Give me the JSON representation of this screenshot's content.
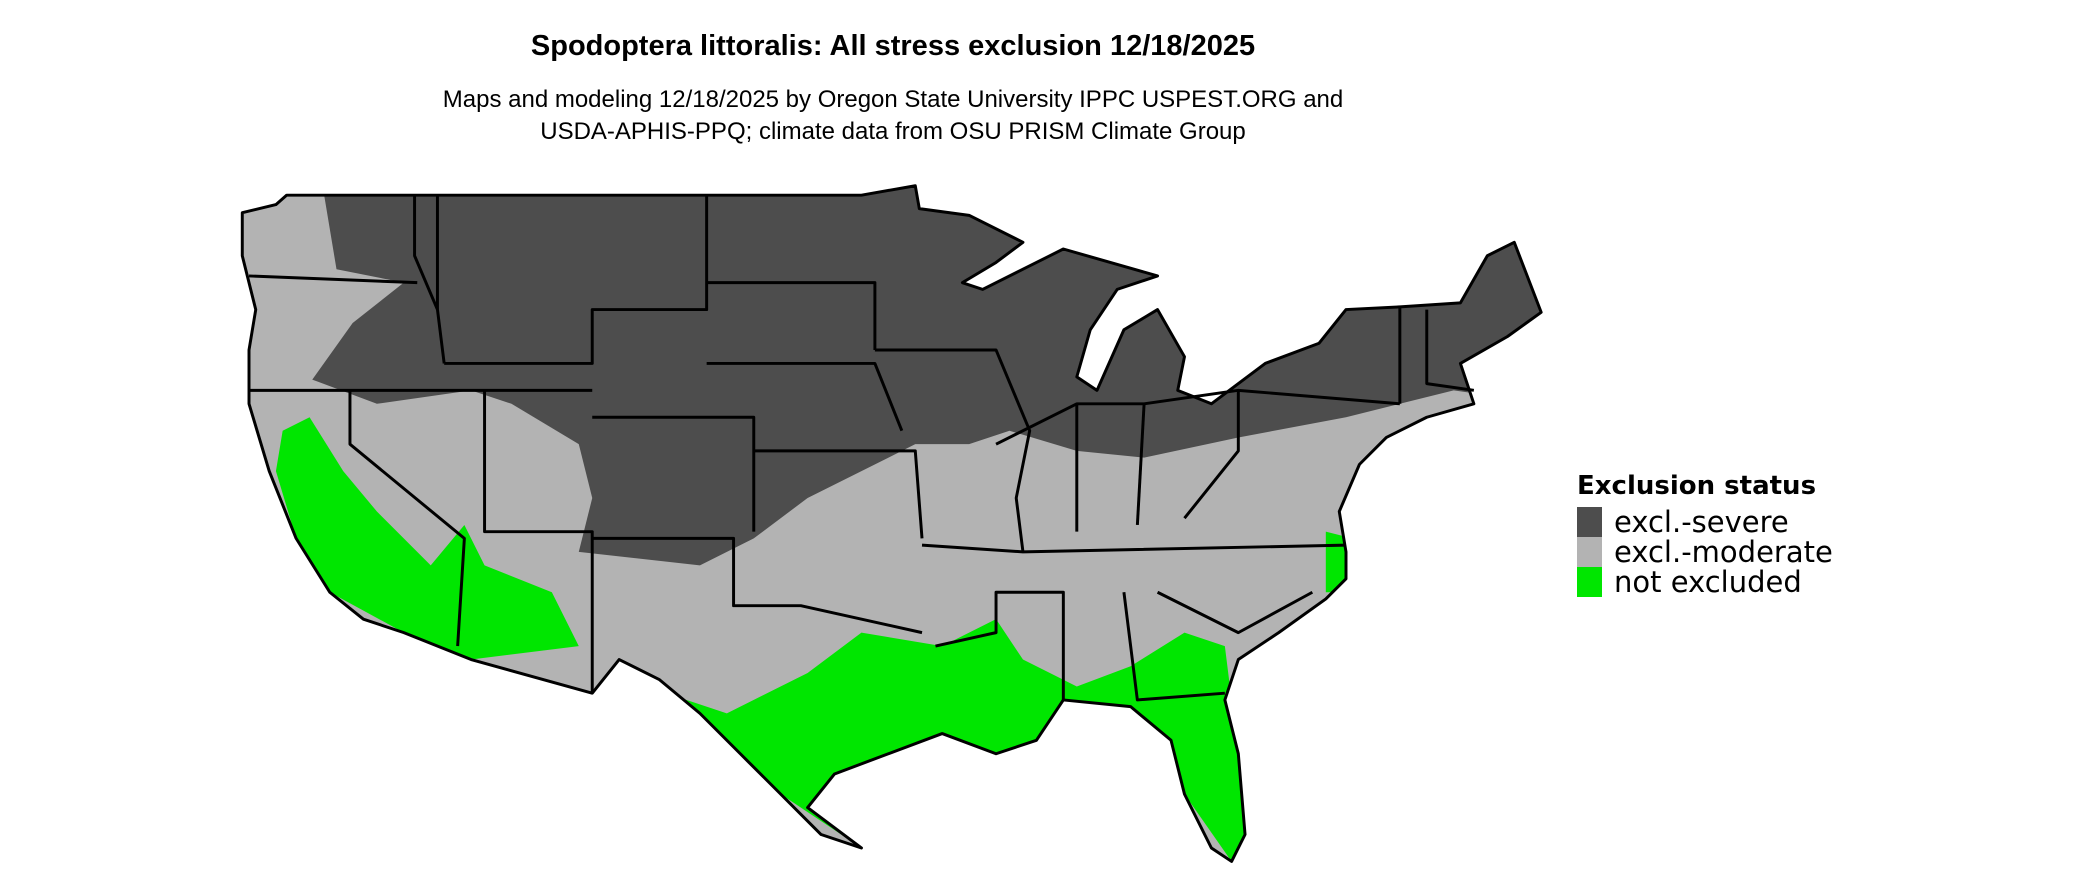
{
  "title": "Spodoptera littoralis: All stress exclusion 12/18/2025",
  "subtitle_lines": [
    "Maps and modeling 12/18/2025 by Oregon State University IPPC USPEST.ORG and",
    "USDA-APHIS-PPQ; climate data from OSU PRISM Climate Group"
  ],
  "map": {
    "region": "Conterminous United States",
    "layers": [
      "state-borders"
    ]
  },
  "legend": {
    "title": "Exclusion status",
    "items": [
      {
        "label": "excl.-severe",
        "color": "#4d4d4d"
      },
      {
        "label": "excl.-moderate",
        "color": "#b3b3b3"
      },
      {
        "label": "not excluded",
        "color": "#00e600"
      }
    ]
  }
}
